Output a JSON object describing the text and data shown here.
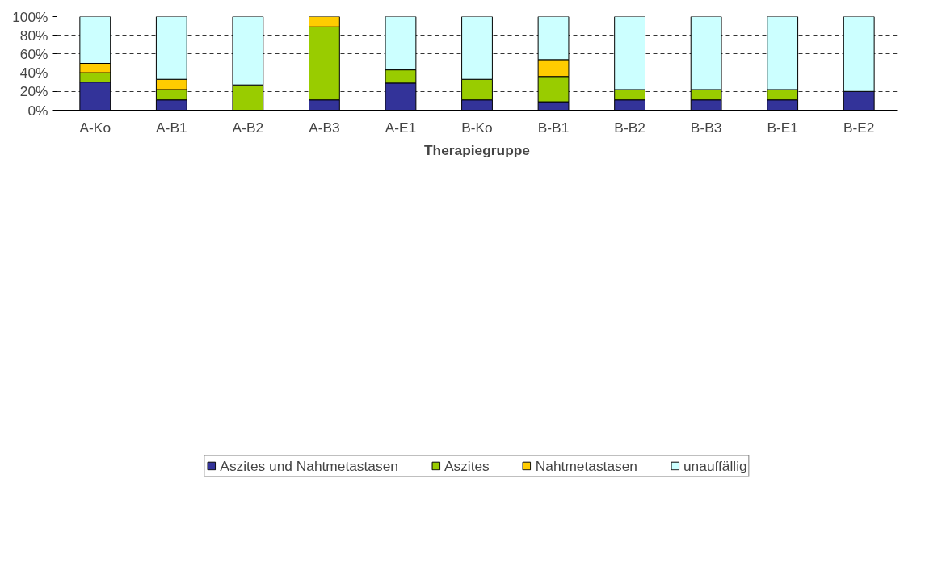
{
  "chart_data": {
    "type": "bar",
    "stacked": true,
    "xlabel": "Therapiegruppe",
    "categories": [
      "A-Ko",
      "A-B1",
      "A-B2",
      "A-B3",
      "A-E1",
      "B-Ko",
      "B-B1",
      "B-B2",
      "B-B3",
      "B-E1",
      "B-E2"
    ],
    "series": [
      {
        "name": "Aszites und Nahtmetastasen",
        "color": "#333399",
        "values": [
          30,
          11,
          null,
          11,
          29,
          11,
          9,
          11,
          11,
          11,
          20
        ]
      },
      {
        "name": "Aszites",
        "color": "#99cc00",
        "values": [
          10,
          11,
          27,
          78,
          14,
          22,
          27,
          11,
          11,
          11,
          null
        ]
      },
      {
        "name": "Nahtmetastasen",
        "color": "#ffcc00",
        "values": [
          10,
          11,
          null,
          11,
          null,
          null,
          18,
          null,
          null,
          null,
          null
        ]
      },
      {
        "name": "unauffällig",
        "color": "#ccffff",
        "values": [
          50,
          67,
          73,
          null,
          57,
          67,
          46,
          78,
          78,
          78,
          80
        ]
      }
    ],
    "ylim": [
      0,
      100
    ],
    "yticks": [
      {
        "value": 0,
        "label": "0%"
      },
      {
        "value": 20,
        "label": "20%"
      },
      {
        "value": 40,
        "label": "40%"
      },
      {
        "value": 60,
        "label": "60%"
      },
      {
        "value": 80,
        "label": "80%"
      },
      {
        "value": 100,
        "label": "100%"
      }
    ],
    "grid": "y",
    "legend": "bottom"
  }
}
